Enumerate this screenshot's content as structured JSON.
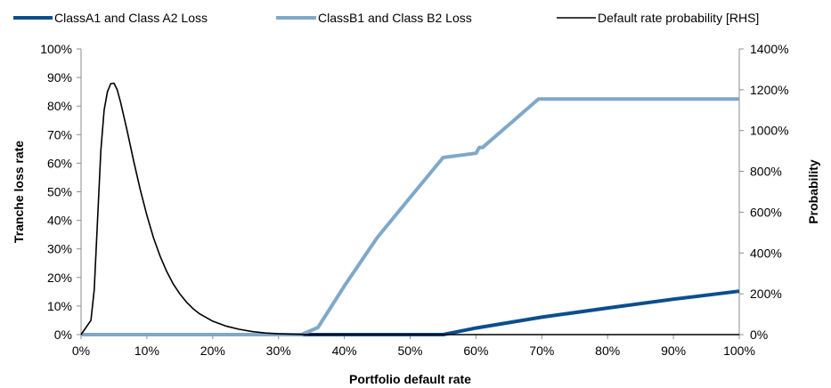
{
  "chart_data": {
    "type": "line",
    "xlabel": "Portfolio default rate",
    "ylabel": "Tranche loss rate",
    "y2label": "Probability",
    "xlim": [
      0,
      100
    ],
    "ylim": [
      0,
      100
    ],
    "y2lim": [
      0,
      1400
    ],
    "x_ticks": [
      "0%",
      "10%",
      "20%",
      "30%",
      "40%",
      "50%",
      "60%",
      "70%",
      "80%",
      "90%",
      "100%"
    ],
    "y_ticks": [
      "0%",
      "10%",
      "20%",
      "30%",
      "40%",
      "50%",
      "60%",
      "70%",
      "80%",
      "90%",
      "100%"
    ],
    "y2_ticks": [
      "0%",
      "200%",
      "400%",
      "600%",
      "800%",
      "1000%",
      "1200%",
      "1400%"
    ],
    "grid": false,
    "legend_position": "top",
    "series": [
      {
        "name": "ClassA1 and Class A2 Loss",
        "color": "#0b4e8e",
        "axis": "left",
        "x": [
          0,
          10,
          20,
          30,
          40,
          50,
          55,
          60,
          70,
          80,
          90,
          100
        ],
        "y": [
          0,
          0,
          0,
          0,
          0,
          0,
          0,
          2.3,
          6.1,
          9.3,
          12.4,
          15.2
        ]
      },
      {
        "name": "ClassB1 and Class B2 Loss",
        "color": "#7fa8c9",
        "axis": "left",
        "x": [
          0,
          10,
          20,
          30,
          33.5,
          36,
          40,
          45,
          50,
          55,
          60,
          60.5,
          61,
          65,
          69.5,
          70,
          80,
          90,
          100
        ],
        "y": [
          0,
          0,
          0,
          0,
          0,
          2.5,
          17,
          34,
          48,
          62,
          63.5,
          65.5,
          65.5,
          73.5,
          82.5,
          82.5,
          82.5,
          82.5,
          82.5
        ]
      },
      {
        "name": "Default rate probability [RHS]",
        "color": "#000000",
        "axis": "right",
        "x": [
          0,
          1.5,
          2,
          2.5,
          3,
          3.5,
          4,
          4.5,
          5,
          5.5,
          6,
          7,
          8,
          9,
          10,
          11,
          12,
          13,
          14,
          15,
          16,
          17,
          18,
          20,
          22,
          24,
          26,
          28,
          30,
          32,
          35,
          40,
          100
        ],
        "y": [
          0,
          70,
          220,
          560,
          900,
          1100,
          1190,
          1230,
          1232,
          1200,
          1140,
          1000,
          850,
          710,
          585,
          475,
          385,
          310,
          248,
          200,
          160,
          128,
          102,
          66,
          42,
          26,
          15,
          8,
          4,
          2,
          0.5,
          0,
          0
        ]
      }
    ]
  }
}
